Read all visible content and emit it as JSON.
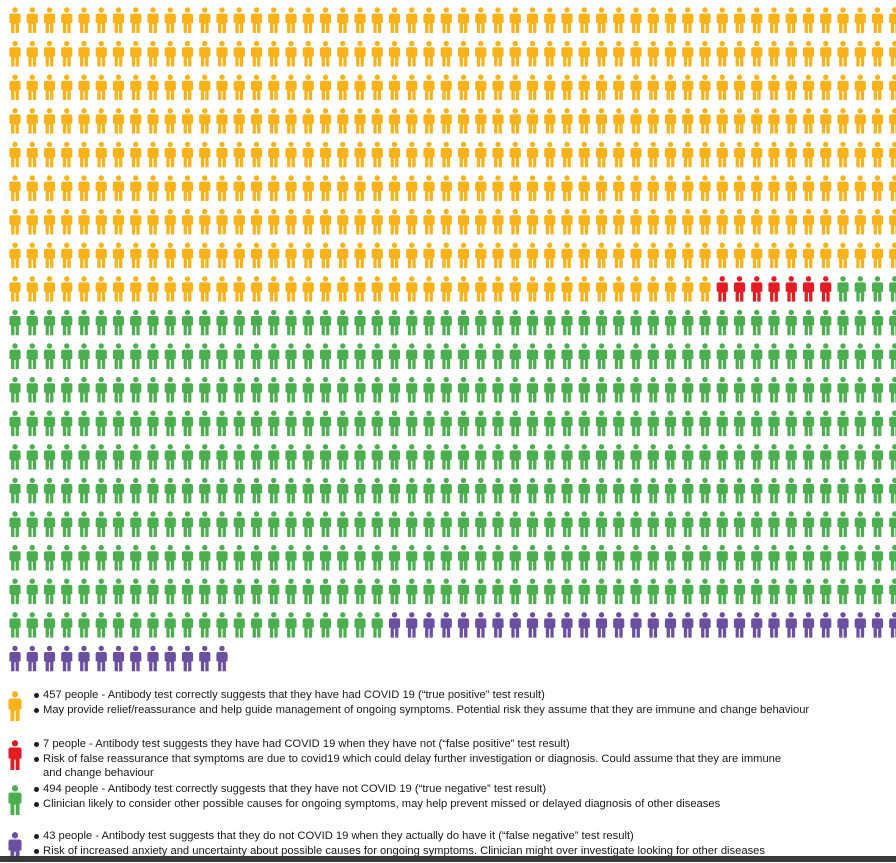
{
  "chart_data": {
    "type": "pictogram",
    "total": 1001,
    "icons_per_row": 52,
    "categories": [
      {
        "name": "true positive",
        "count": 457,
        "color": "#f9b21a"
      },
      {
        "name": "false positive",
        "count": 7,
        "color": "#e31b23"
      },
      {
        "name": "true negative",
        "count": 494,
        "color": "#4caf4f"
      },
      {
        "name": "false negative",
        "count": 43,
        "color": "#6b4fa0"
      }
    ]
  },
  "legend": [
    {
      "icon": "person-icon",
      "color": "#f9b21a",
      "line1": "457 people - Antibody test correctly suggests that they have had COVID 19 (“true positive” test result)",
      "line2": "May provide relief/reassurance and help guide management of ongoing symptoms. Potential risk they assume that they are immune and change behaviour",
      "line3": ""
    },
    {
      "icon": "person-icon",
      "color": "#e31b23",
      "line1": "7 people - Antibody test suggests they have had COVID 19 when they have not (“false positive” test result)",
      "line2": "Risk of false reassurance that symptoms are due to covid19 which could delay further investigation or diagnosis. Could assume that they are immune",
      "line3": "and change behaviour"
    },
    {
      "icon": "person-icon",
      "color": "#4caf4f",
      "line1": "494 people - Antibody test correctly suggests that they have not COVID 19 (“true negative” test result)",
      "line2": "Clinician likely to consider other possible causes for ongoing symptoms, may help prevent missed or delayed diagnosis of other diseases",
      "line3": ""
    },
    {
      "icon": "person-icon",
      "color": "#6b4fa0",
      "line1": "43 people - Antibody test suggests that they do not COVID 19 when they actually do have it (“false negative” test result)",
      "line2": "Risk of increased anxiety and uncertainty about possible causes for ongoing symptoms. Clinician might over investigate looking for other diseases",
      "line3": ""
    }
  ]
}
